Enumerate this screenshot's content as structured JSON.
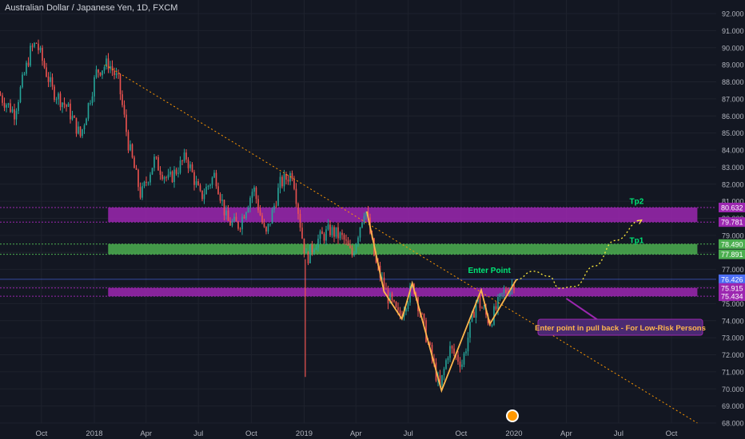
{
  "symbol_title": "Australian Dollar / Japanese Yen, 1D, FXCM",
  "colors": {
    "background": "#131722",
    "up": "#26a69a",
    "down": "#ef5350",
    "purple_zone": "#9c27b0",
    "green_zone": "#4caf50",
    "trendline": "#ff9800",
    "pattern": "#ffb74d",
    "label_green": "#00e676"
  },
  "chart_data": {
    "type": "candlestick",
    "symbol": "AUDJPY",
    "interval": "1D",
    "exchange": "FXCM",
    "ylim": [
      68.0,
      92.5
    ],
    "y_ticks": [
      "92.000",
      "91.000",
      "90.000",
      "89.000",
      "88.000",
      "87.000",
      "86.000",
      "85.000",
      "84.000",
      "83.000",
      "82.000",
      "81.000",
      "80.000",
      "79.000",
      "78.000",
      "77.000",
      "76.000",
      "75.000",
      "74.000",
      "73.000",
      "72.000",
      "71.000",
      "70.000",
      "69.000",
      "68.000"
    ],
    "x_ticks": [
      {
        "label": "Oct",
        "date": "2017-10-01"
      },
      {
        "label": "2018",
        "date": "2018-01-01"
      },
      {
        "label": "Apr",
        "date": "2018-04-01"
      },
      {
        "label": "Jul",
        "date": "2018-07-01"
      },
      {
        "label": "Oct",
        "date": "2018-10-01"
      },
      {
        "label": "2019",
        "date": "2019-01-01"
      },
      {
        "label": "Apr",
        "date": "2019-04-01"
      },
      {
        "label": "Jul",
        "date": "2019-07-01"
      },
      {
        "label": "Oct",
        "date": "2019-10-01"
      },
      {
        "label": "2020",
        "date": "2020-01-01"
      },
      {
        "label": "Apr",
        "date": "2020-04-01"
      },
      {
        "label": "Jul",
        "date": "2020-07-01"
      },
      {
        "label": "Oct",
        "date": "2020-10-01"
      }
    ],
    "price_path": [
      [
        "2017-07-01",
        88.5
      ],
      [
        "2017-07-25",
        87.0
      ],
      [
        "2017-08-15",
        86.2
      ],
      [
        "2017-09-12",
        89.8
      ],
      [
        "2017-09-22",
        90.3
      ],
      [
        "2017-10-20",
        87.5
      ],
      [
        "2017-11-15",
        86.5
      ],
      [
        "2017-12-08",
        84.8
      ],
      [
        "2018-01-05",
        88.6
      ],
      [
        "2018-01-26",
        89.1
      ],
      [
        "2018-02-12",
        88.0
      ],
      [
        "2018-03-01",
        84.4
      ],
      [
        "2018-03-23",
        81.3
      ],
      [
        "2018-04-15",
        83.4
      ],
      [
        "2018-05-10",
        82.2
      ],
      [
        "2018-06-10",
        83.6
      ],
      [
        "2018-07-05",
        81.2
      ],
      [
        "2018-07-30",
        82.6
      ],
      [
        "2018-08-20",
        79.8
      ],
      [
        "2018-09-10",
        79.6
      ],
      [
        "2018-10-05",
        81.8
      ],
      [
        "2018-10-26",
        78.9
      ],
      [
        "2018-11-20",
        82.0
      ],
      [
        "2018-12-12",
        82.7
      ],
      [
        "2018-12-28",
        79.0
      ],
      [
        "2019-01-05",
        77.6
      ],
      [
        "2019-01-20",
        78.6
      ],
      [
        "2019-02-15",
        79.3
      ],
      [
        "2019-03-10",
        78.8
      ],
      [
        "2019-03-25",
        77.8
      ],
      [
        "2019-04-17",
        80.7
      ],
      [
        "2019-05-05",
        77.4
      ],
      [
        "2019-05-25",
        75.5
      ],
      [
        "2019-06-15",
        74.2
      ],
      [
        "2019-07-10",
        76.1
      ],
      [
        "2019-08-05",
        72.6
      ],
      [
        "2019-08-25",
        70.0
      ],
      [
        "2019-09-10",
        72.4
      ],
      [
        "2019-10-03",
        71.5
      ],
      [
        "2019-10-28",
        75.3
      ],
      [
        "2019-11-20",
        73.9
      ],
      [
        "2019-12-13",
        75.6
      ],
      [
        "2020-01-03",
        76.3
      ]
    ],
    "wick_spike": {
      "date": "2019-01-03",
      "low": 70.7
    },
    "zones": [
      {
        "kind": "resistance",
        "color": "purple",
        "from": "2018-01-25",
        "to": "2020-11-15",
        "low": 79.78,
        "high": 80.63
      },
      {
        "kind": "tp1_zone",
        "color": "green",
        "from": "2018-01-25",
        "to": "2020-11-15",
        "low": 77.89,
        "high": 78.49
      },
      {
        "kind": "support",
        "color": "purple",
        "from": "2018-01-25",
        "to": "2020-11-15",
        "low": 75.43,
        "high": 75.92
      }
    ],
    "price_markers": [
      {
        "value": "80.632",
        "color": "#9c27b0"
      },
      {
        "value": "79.781",
        "color": "#9c27b0"
      },
      {
        "value": "78.490",
        "color": "#4caf50"
      },
      {
        "value": "77.891",
        "color": "#4caf50"
      },
      {
        "value": "76.426",
        "color": "#4c6ef5"
      },
      {
        "value": "75.915",
        "color": "#9c27b0"
      },
      {
        "value": "75.434",
        "color": "#9c27b0"
      }
    ],
    "trendline": {
      "from": [
        "2018-01-20",
        89.0
      ],
      "to": [
        "2020-11-15",
        68.0
      ]
    },
    "pattern_lines": [
      [
        [
          "2019-04-20",
          80.4
        ],
        [
          "2019-05-20",
          75.7
        ],
        [
          "2019-06-20",
          74.1
        ],
        [
          "2019-07-08",
          76.2
        ],
        [
          "2019-08-28",
          69.9
        ],
        [
          "2019-11-05",
          75.8
        ],
        [
          "2019-11-20",
          73.8
        ],
        [
          "2020-01-05",
          76.4
        ]
      ]
    ],
    "projection_path": [
      [
        "2020-01-05",
        76.4
      ],
      [
        "2020-02-03",
        76.9
      ],
      [
        "2020-03-02",
        76.6
      ],
      [
        "2020-03-20",
        75.9
      ],
      [
        "2020-04-15",
        76.0
      ],
      [
        "2020-05-20",
        77.2
      ],
      [
        "2020-06-25",
        78.7
      ],
      [
        "2020-08-10",
        79.9
      ]
    ],
    "annotations": {
      "tp2": "Tp2",
      "tp1": "Tp1",
      "enter": "Enter Point",
      "note": "Enter point in pull back - For Low-Risk Persons"
    }
  }
}
